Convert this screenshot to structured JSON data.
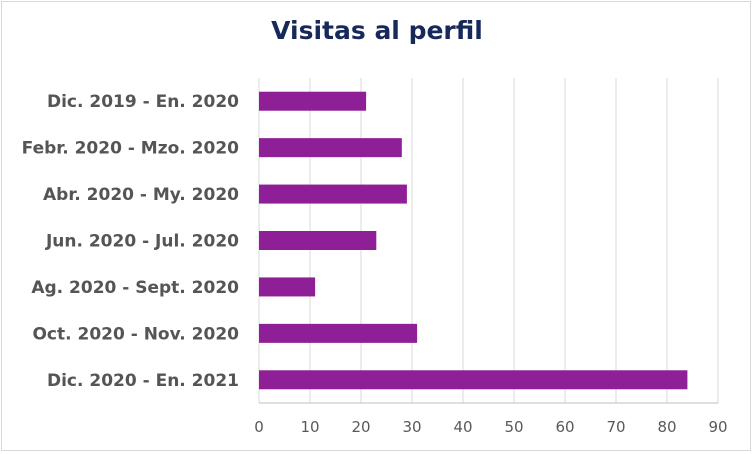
{
  "chart_data": {
    "type": "bar",
    "orientation": "horizontal",
    "title": "Visitas al perfil",
    "categories": [
      "Dic. 2019 - En. 2020",
      "Febr. 2020 - Mzo. 2020",
      "Abr. 2020 - My. 2020",
      "Jun. 2020 - Jul. 2020",
      "Ag. 2020 - Sept. 2020",
      "Oct. 2020 - Nov. 2020",
      "Dic. 2020 - En. 2021"
    ],
    "values": [
      21,
      28,
      29,
      23,
      11,
      31,
      84
    ],
    "xlim": [
      0,
      90
    ],
    "xticks": [
      "0",
      "10",
      "20",
      "30",
      "40",
      "50",
      "60",
      "70",
      "80",
      "90"
    ],
    "grid": "vertical",
    "bar_color": "#8e1f96",
    "title_color": "#17285a"
  }
}
